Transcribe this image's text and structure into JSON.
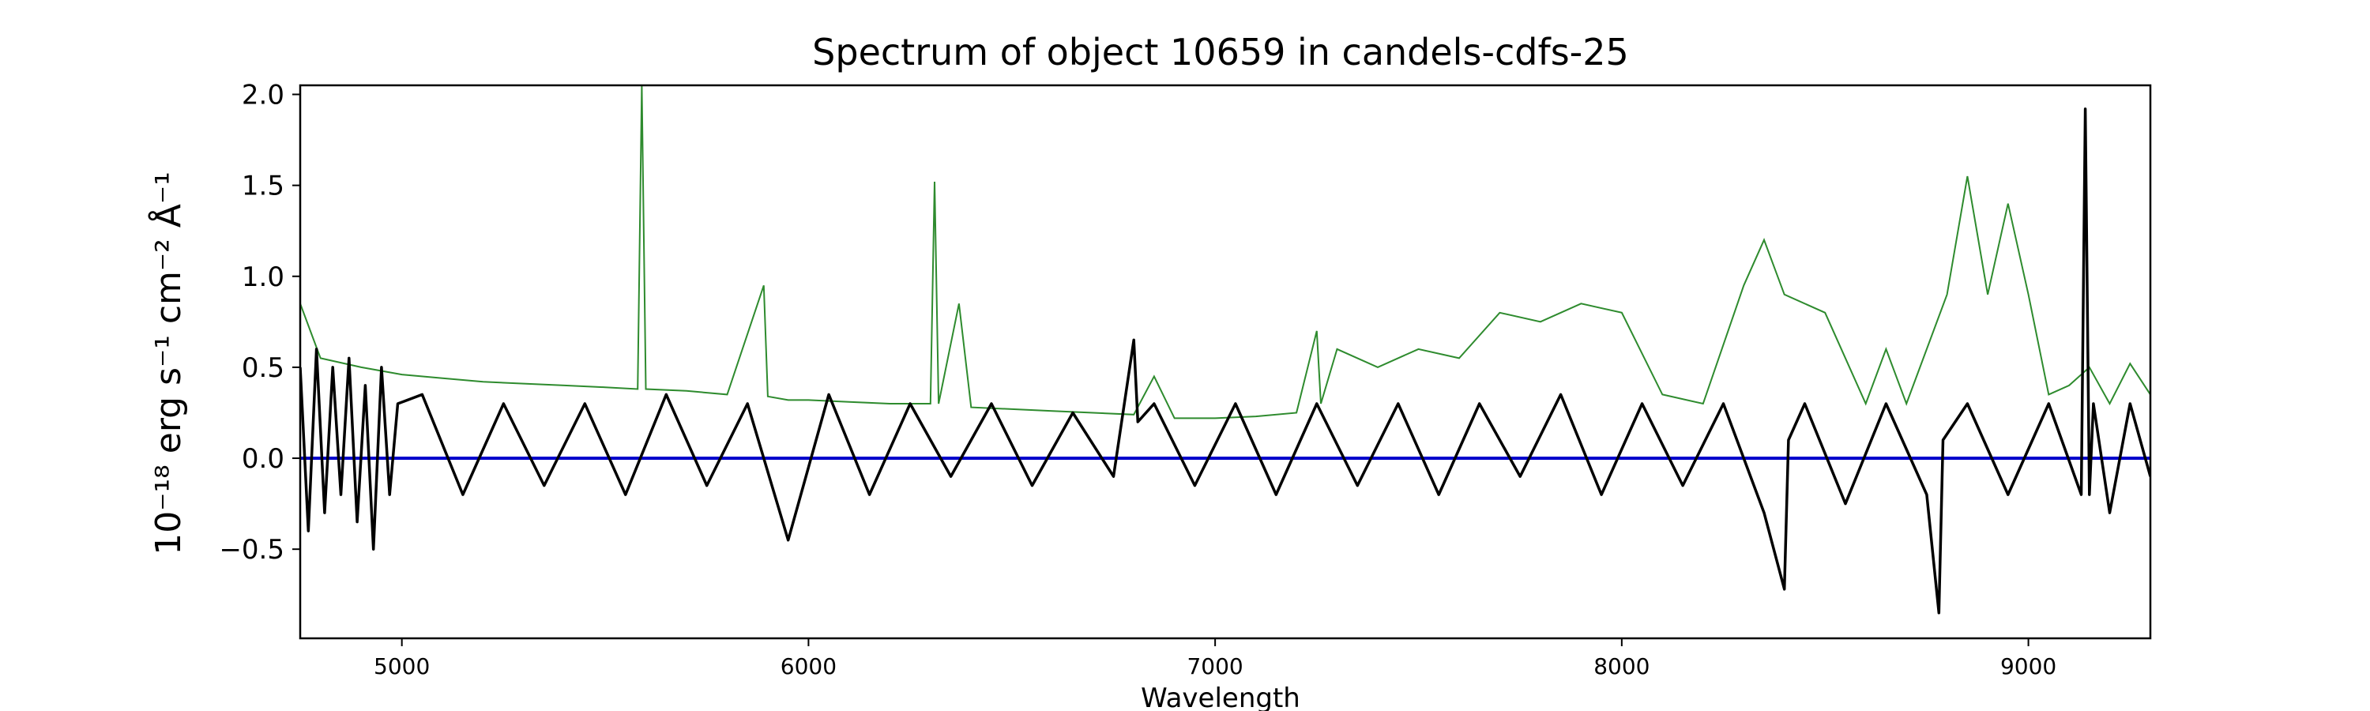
{
  "chart_data": {
    "type": "line",
    "title": "Spectrum of object 10659 in candels-cdfs-25",
    "xlabel": "Wavelength",
    "ylabel": "10⁻¹⁸ erg s⁻¹ cm⁻² Å⁻¹",
    "xlim": [
      4750,
      9300
    ],
    "ylim": [
      -0.99,
      2.05
    ],
    "x_ticks": [
      5000,
      6000,
      7000,
      8000,
      9000
    ],
    "y_ticks": [
      2.0,
      1.5,
      1.0,
      0.5,
      0.0,
      -0.5
    ],
    "y_tick_labels": [
      "2.0",
      "1.5",
      "1.0",
      "0.5",
      "0.0",
      "−0.5"
    ],
    "grid": false,
    "colors": {
      "spectrum": "#000000",
      "error": "#2e8b2e",
      "zero": "#0000cc"
    },
    "series": [
      {
        "role": "spectrum",
        "x": [
          4750,
          4770,
          4790,
          4810,
          4830,
          4850,
          4870,
          4890,
          4910,
          4930,
          4950,
          4970,
          4990,
          5050,
          5150,
          5250,
          5350,
          5450,
          5550,
          5650,
          5750,
          5850,
          5950,
          6050,
          6150,
          6250,
          6350,
          6450,
          6550,
          6650,
          6750,
          6800,
          6810,
          6850,
          6950,
          7050,
          7150,
          7250,
          7350,
          7450,
          7550,
          7650,
          7750,
          7850,
          7950,
          8050,
          8150,
          8250,
          8350,
          8400,
          8410,
          8450,
          8550,
          8650,
          8750,
          8780,
          8790,
          8850,
          8950,
          9050,
          9130,
          9140,
          9150,
          9160,
          9200,
          9250,
          9300
        ],
        "y": [
          0.5,
          -0.4,
          0.6,
          -0.3,
          0.5,
          -0.2,
          0.55,
          -0.35,
          0.4,
          -0.5,
          0.5,
          -0.2,
          0.3,
          0.35,
          -0.2,
          0.3,
          -0.15,
          0.3,
          -0.2,
          0.35,
          -0.15,
          0.3,
          -0.45,
          0.35,
          -0.2,
          0.3,
          -0.1,
          0.3,
          -0.15,
          0.25,
          -0.1,
          0.65,
          0.2,
          0.3,
          -0.15,
          0.3,
          -0.2,
          0.3,
          -0.15,
          0.3,
          -0.2,
          0.3,
          -0.1,
          0.35,
          -0.2,
          0.3,
          -0.15,
          0.3,
          -0.3,
          -0.72,
          0.1,
          0.3,
          -0.25,
          0.3,
          -0.2,
          -0.85,
          0.1,
          0.3,
          -0.2,
          0.3,
          -0.2,
          1.92,
          -0.2,
          0.3,
          -0.3,
          0.3,
          -0.1
        ]
      },
      {
        "role": "error",
        "x": [
          4750,
          4800,
          4900,
          5000,
          5100,
          5200,
          5300,
          5400,
          5500,
          5580,
          5590,
          5600,
          5700,
          5800,
          5890,
          5900,
          5950,
          6000,
          6100,
          6200,
          6300,
          6310,
          6320,
          6370,
          6400,
          6500,
          6600,
          6700,
          6800,
          6850,
          6900,
          7000,
          7100,
          7200,
          7250,
          7260,
          7300,
          7400,
          7500,
          7600,
          7700,
          7800,
          7900,
          8000,
          8100,
          8200,
          8300,
          8350,
          8400,
          8500,
          8600,
          8650,
          8700,
          8800,
          8850,
          8900,
          8950,
          9000,
          9050,
          9100,
          9150,
          9200,
          9250,
          9300
        ],
        "y": [
          0.85,
          0.55,
          0.5,
          0.46,
          0.44,
          0.42,
          0.41,
          0.4,
          0.39,
          0.38,
          2.05,
          0.38,
          0.37,
          0.35,
          0.95,
          0.34,
          0.32,
          0.32,
          0.31,
          0.3,
          0.3,
          1.52,
          0.3,
          0.85,
          0.28,
          0.27,
          0.26,
          0.25,
          0.24,
          0.45,
          0.22,
          0.22,
          0.23,
          0.25,
          0.7,
          0.3,
          0.6,
          0.5,
          0.6,
          0.55,
          0.8,
          0.75,
          0.85,
          0.8,
          0.35,
          0.3,
          0.95,
          1.2,
          0.9,
          0.8,
          0.3,
          0.6,
          0.3,
          0.9,
          1.55,
          0.9,
          1.4,
          0.9,
          0.35,
          0.4,
          0.5,
          0.3,
          0.52,
          0.35
        ]
      }
    ]
  }
}
